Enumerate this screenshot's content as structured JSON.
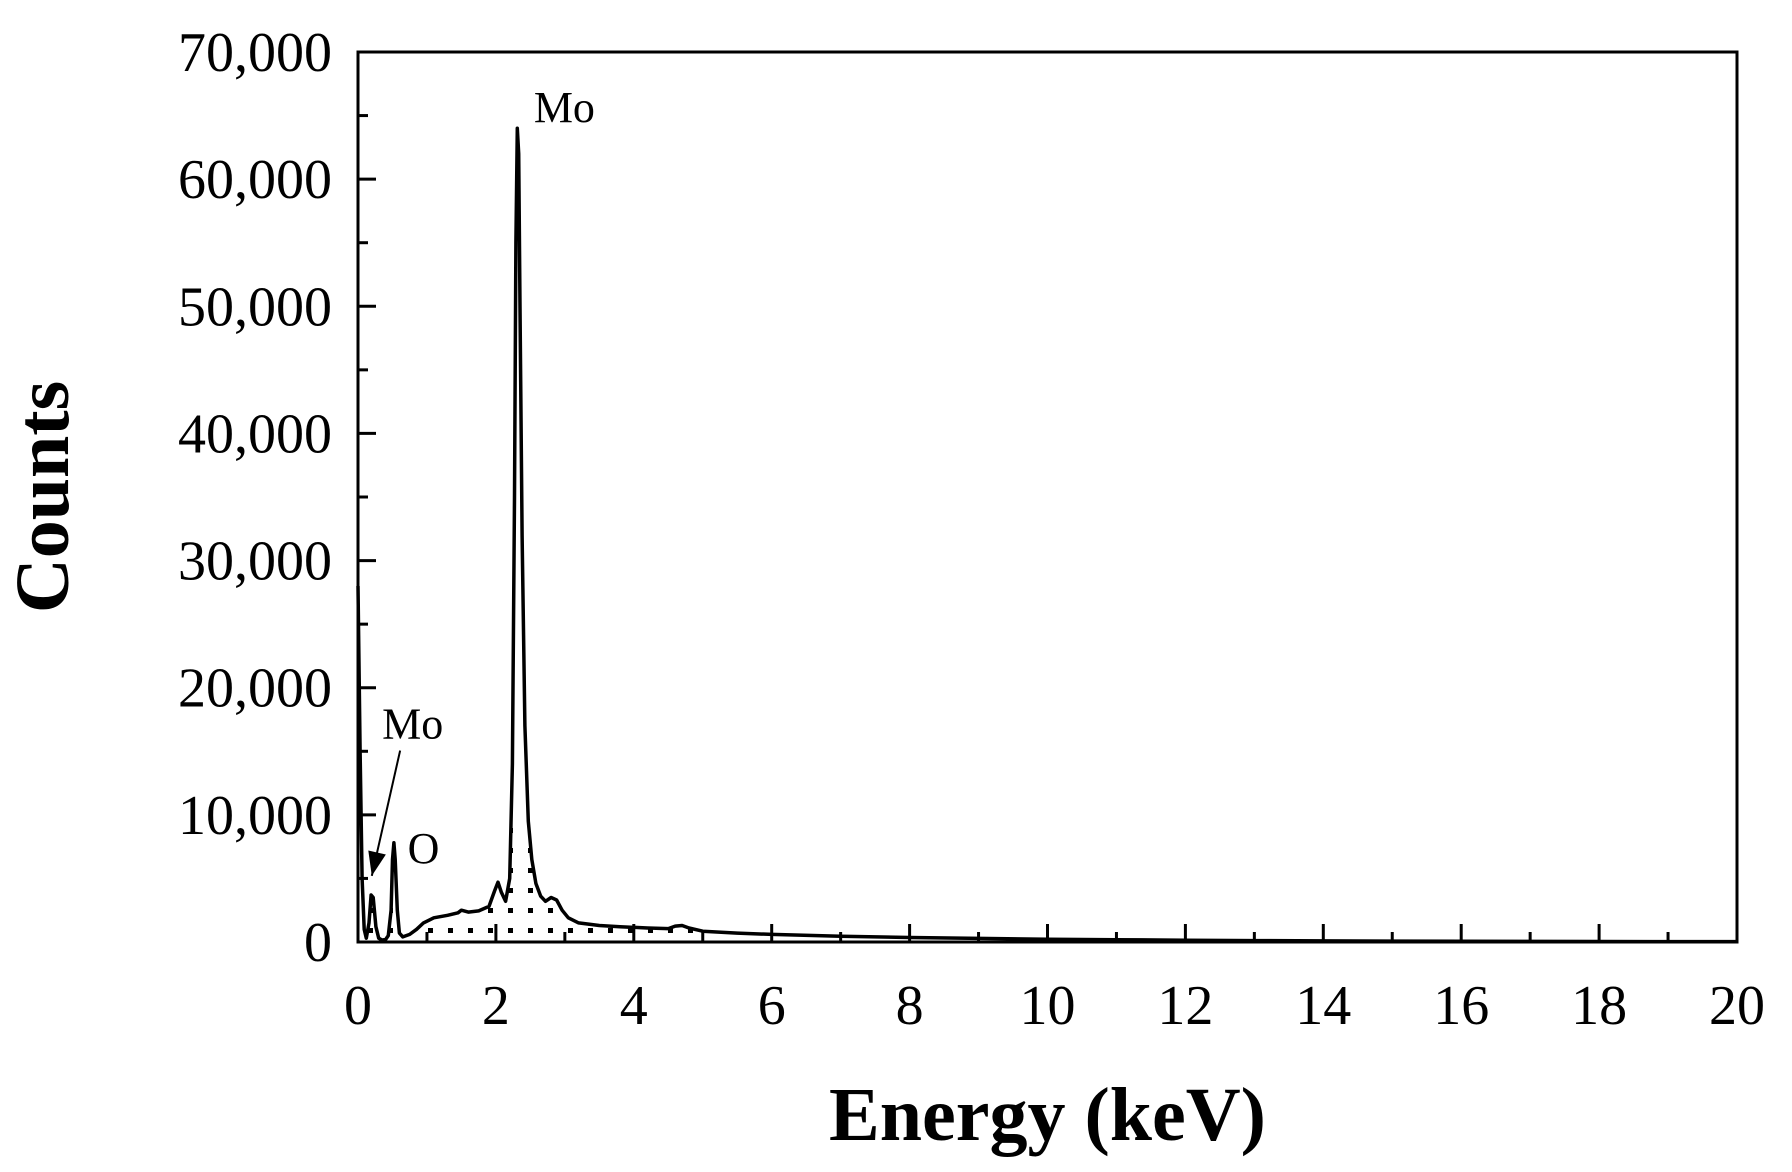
{
  "chart_data": {
    "type": "line",
    "title": "",
    "xlabel": "Energy (keV)",
    "ylabel": "Counts",
    "xlim": [
      0,
      20
    ],
    "ylim": [
      0,
      70000
    ],
    "x_ticks": [
      0,
      2,
      4,
      6,
      8,
      10,
      12,
      14,
      16,
      18,
      20
    ],
    "x_tick_labels": [
      "0",
      "2",
      "4",
      "6",
      "8",
      "10",
      "12",
      "14",
      "16",
      "18",
      "20"
    ],
    "y_ticks": [
      0,
      10000,
      20000,
      30000,
      40000,
      50000,
      60000,
      70000
    ],
    "y_tick_labels": [
      "0",
      "10,000",
      "20,000",
      "30,000",
      "40,000",
      "50,000",
      "60,000",
      "70,000"
    ],
    "grid": false,
    "legend": "none",
    "series": [
      {
        "color": "#000000",
        "points": [
          [
            0.0,
            28000
          ],
          [
            0.03,
            15000
          ],
          [
            0.06,
            5000
          ],
          [
            0.09,
            1000
          ],
          [
            0.12,
            300
          ],
          [
            0.16,
            1500
          ],
          [
            0.19,
            3700
          ],
          [
            0.22,
            3500
          ],
          [
            0.26,
            1200
          ],
          [
            0.3,
            300
          ],
          [
            0.35,
            150
          ],
          [
            0.4,
            200
          ],
          [
            0.44,
            500
          ],
          [
            0.48,
            2500
          ],
          [
            0.5,
            6500
          ],
          [
            0.52,
            7800
          ],
          [
            0.54,
            6500
          ],
          [
            0.57,
            2500
          ],
          [
            0.6,
            700
          ],
          [
            0.65,
            400
          ],
          [
            0.75,
            600
          ],
          [
            0.85,
            1000
          ],
          [
            0.95,
            1500
          ],
          [
            1.1,
            1900
          ],
          [
            1.3,
            2100
          ],
          [
            1.45,
            2300
          ],
          [
            1.5,
            2500
          ],
          [
            1.6,
            2350
          ],
          [
            1.75,
            2450
          ],
          [
            1.9,
            2800
          ],
          [
            1.98,
            4000
          ],
          [
            2.03,
            4700
          ],
          [
            2.08,
            3900
          ],
          [
            2.14,
            3200
          ],
          [
            2.2,
            5000
          ],
          [
            2.24,
            14000
          ],
          [
            2.27,
            35000
          ],
          [
            2.29,
            55000
          ],
          [
            2.31,
            64000
          ],
          [
            2.33,
            62000
          ],
          [
            2.35,
            50000
          ],
          [
            2.38,
            32000
          ],
          [
            2.42,
            17000
          ],
          [
            2.47,
            9500
          ],
          [
            2.52,
            6500
          ],
          [
            2.58,
            4600
          ],
          [
            2.65,
            3600
          ],
          [
            2.72,
            3200
          ],
          [
            2.8,
            3500
          ],
          [
            2.88,
            3300
          ],
          [
            2.96,
            2500
          ],
          [
            3.05,
            1900
          ],
          [
            3.2,
            1500
          ],
          [
            3.5,
            1300
          ],
          [
            3.8,
            1200
          ],
          [
            4.2,
            1100
          ],
          [
            4.5,
            1050
          ],
          [
            4.6,
            1250
          ],
          [
            4.7,
            1300
          ],
          [
            4.8,
            1100
          ],
          [
            5.0,
            850
          ],
          [
            5.5,
            700
          ],
          [
            6.0,
            600
          ],
          [
            7.0,
            450
          ],
          [
            8.0,
            350
          ],
          [
            9.0,
            280
          ],
          [
            10.0,
            220
          ],
          [
            11.0,
            180
          ],
          [
            12.0,
            140
          ],
          [
            13.0,
            110
          ],
          [
            14.0,
            90
          ],
          [
            15.0,
            70
          ],
          [
            16.0,
            60
          ],
          [
            17.0,
            50
          ],
          [
            18.0,
            40
          ],
          [
            19.0,
            35
          ],
          [
            20.0,
            30
          ]
        ]
      }
    ],
    "annotations": [
      {
        "text": "Mo",
        "x": 2.55,
        "y": 64500
      },
      {
        "text": "Mo",
        "x": 0.35,
        "y": 16000,
        "arrow_to": [
          0.2,
          5200
        ]
      },
      {
        "text": "O",
        "x": 0.72,
        "y": 6200
      }
    ]
  }
}
